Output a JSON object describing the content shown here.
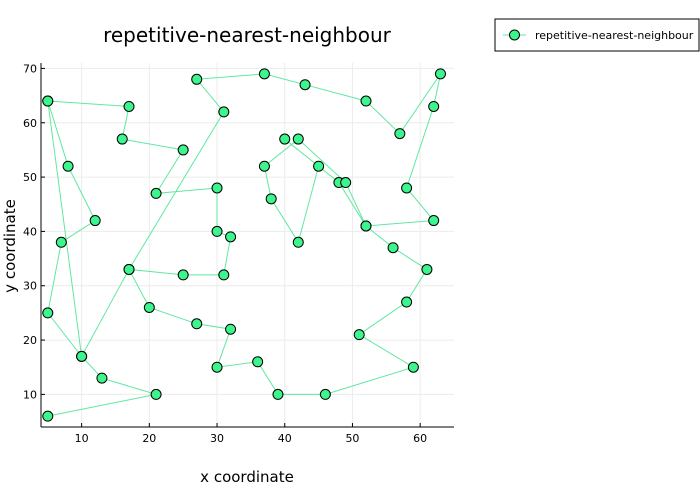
{
  "chart_data": {
    "type": "line",
    "title": "repetitive-nearest-neighbour",
    "xlabel": "x coordinate",
    "ylabel": "y coordinate",
    "xlim": [
      4,
      65
    ],
    "ylim": [
      4,
      71
    ],
    "x_ticks": [
      10,
      20,
      30,
      40,
      50,
      60
    ],
    "y_ticks": [
      10,
      20,
      30,
      40,
      50,
      60,
      70
    ],
    "grid": true,
    "legend_position": "outside-top-right",
    "colors": {
      "line": "#5fe8a0",
      "marker_fill": "#3df58d",
      "marker_edge": "#000000",
      "grid": "#ececec"
    },
    "series": [
      {
        "name": "repetitive-nearest-neighbour",
        "x": [
          5,
          17,
          16,
          25,
          21,
          30,
          30,
          32,
          31,
          25,
          17,
          20,
          27,
          32,
          30,
          36,
          39,
          46,
          59,
          51,
          58,
          61,
          56,
          52,
          48,
          40,
          45,
          42,
          38,
          37,
          42,
          49,
          52,
          62,
          58,
          62,
          63,
          57,
          52,
          43,
          37,
          27,
          31,
          17,
          10,
          5,
          7,
          12,
          8,
          5,
          10,
          13,
          21,
          5
        ],
        "y": [
          64,
          63,
          57,
          55,
          47,
          48,
          40,
          39,
          32,
          32,
          33,
          26,
          23,
          22,
          15,
          16,
          10,
          10,
          15,
          21,
          27,
          33,
          37,
          41,
          49,
          57,
          52,
          38,
          46,
          52,
          57,
          49,
          41,
          42,
          48,
          63,
          69,
          58,
          64,
          67,
          69,
          68,
          62,
          33,
          17,
          25,
          38,
          42,
          52,
          64,
          17,
          13,
          10,
          6
        ]
      }
    ]
  }
}
